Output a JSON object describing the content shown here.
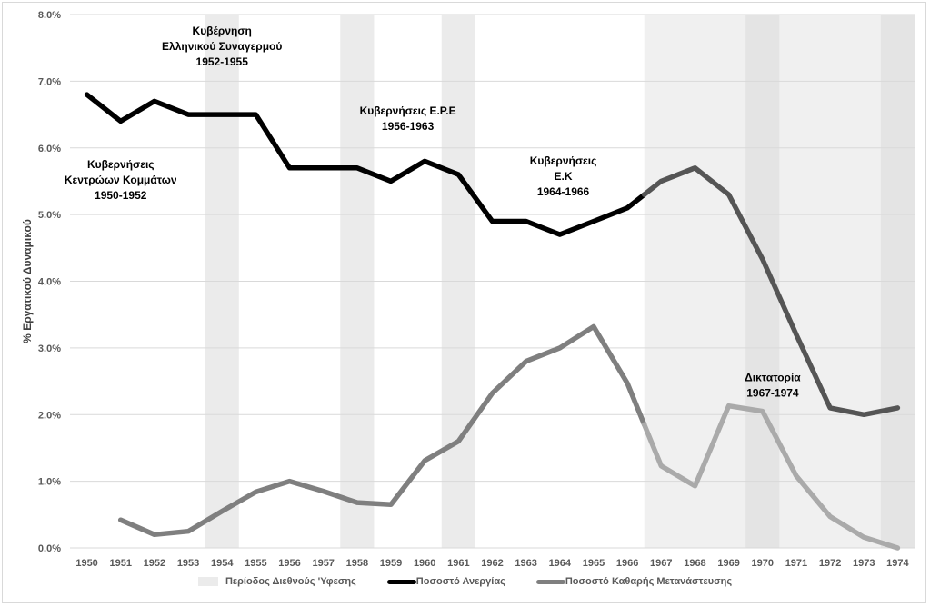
{
  "chart_data": {
    "type": "line",
    "title": "",
    "xlabel": "",
    "ylabel": "% Εργατικού Δυναμικού",
    "ylim": [
      0,
      8
    ],
    "yticks": [
      "0.0%",
      "1.0%",
      "2.0%",
      "3.0%",
      "4.0%",
      "5.0%",
      "6.0%",
      "7.0%",
      "8.0%"
    ],
    "grid": true,
    "categories": [
      "1950",
      "1951",
      "1952",
      "1953",
      "1954",
      "1955",
      "1956",
      "1957",
      "1958",
      "1959",
      "1960",
      "1961",
      "1962",
      "1963",
      "1964",
      "1965",
      "1966",
      "1967",
      "1968",
      "1969",
      "1970",
      "1971",
      "1972",
      "1973",
      "1974"
    ],
    "series": [
      {
        "name": "Ποσοστό Ανεργίας",
        "color": "#000000",
        "color_dictatorship": "#555555",
        "values": [
          6.8,
          6.4,
          6.7,
          6.5,
          6.5,
          6.5,
          5.7,
          5.7,
          5.7,
          5.5,
          5.8,
          5.6,
          4.9,
          4.9,
          4.7,
          4.9,
          5.1,
          5.5,
          5.7,
          5.3,
          4.33,
          3.2,
          2.1,
          2.0,
          2.1
        ]
      },
      {
        "name": "Ποσοστό Καθαρής Μετανάστευσης",
        "color": "#7f7f7f",
        "color_dictatorship": "#aaaaaa",
        "values": [
          null,
          0.42,
          0.2,
          0.25,
          0.55,
          0.84,
          1.0,
          0.85,
          0.68,
          0.65,
          1.31,
          1.6,
          2.32,
          2.8,
          3.0,
          3.32,
          2.47,
          1.23,
          0.93,
          2.13,
          2.05,
          1.08,
          0.47,
          0.16,
          0.0
        ]
      }
    ],
    "recession_bands": {
      "name": "Περίοδος Διεθνούς 'Υφεσης",
      "color": "#ebebeb",
      "years": [
        "1954",
        "1958",
        "1961",
        "1970",
        "1974"
      ]
    },
    "dictatorship_shade": {
      "from": "1967",
      "to": "1974",
      "color": "#f0f0f0",
      "band_color": "#e4e4e4"
    },
    "annotations": [
      {
        "lines": [
          "Κυβερνήσεις",
          "Κεντρώων Κομμάτων",
          "1950-1952"
        ],
        "anchor_year": 1951,
        "anchor_value": 5.7
      },
      {
        "lines": [
          "Κυβέρνηση",
          "Ελληνικού Συναγερμού",
          "1952-1955"
        ],
        "anchor_year": 1954,
        "anchor_value": 7.7
      },
      {
        "lines": [
          "Κυβερνήσεις Ε.Ρ.Ε",
          "1956-1963"
        ],
        "anchor_year": 1959.5,
        "anchor_value": 6.5
      },
      {
        "lines": [
          "Κυβερνήσεις",
          "Ε.Κ",
          "1964-1966"
        ],
        "anchor_year": 1964.1,
        "anchor_value": 5.75
      },
      {
        "lines": [
          "Δικτατορία",
          "1967-1974"
        ],
        "anchor_year": 1970.3,
        "anchor_value": 2.5
      }
    ],
    "legend_position": "bottom",
    "legend": [
      "Περίοδος Διεθνούς 'Υφεσης",
      "Ποσοστό Ανεργίας",
      "Ποσοστό Καθαρής Μετανάστευσης"
    ]
  }
}
